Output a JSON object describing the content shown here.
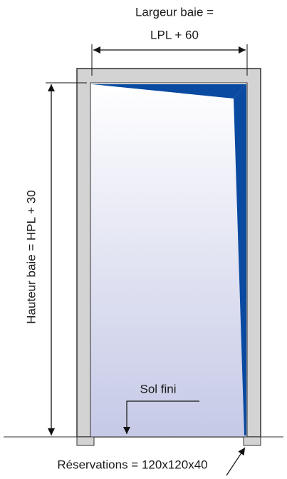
{
  "labels": {
    "width_line1": "Largeur baie =",
    "width_line2": "LPL + 60",
    "height": "Hauteur baie = HPL + 30",
    "floor": "Sol fini",
    "reservations": "Réservations = 120x120x40"
  }
}
